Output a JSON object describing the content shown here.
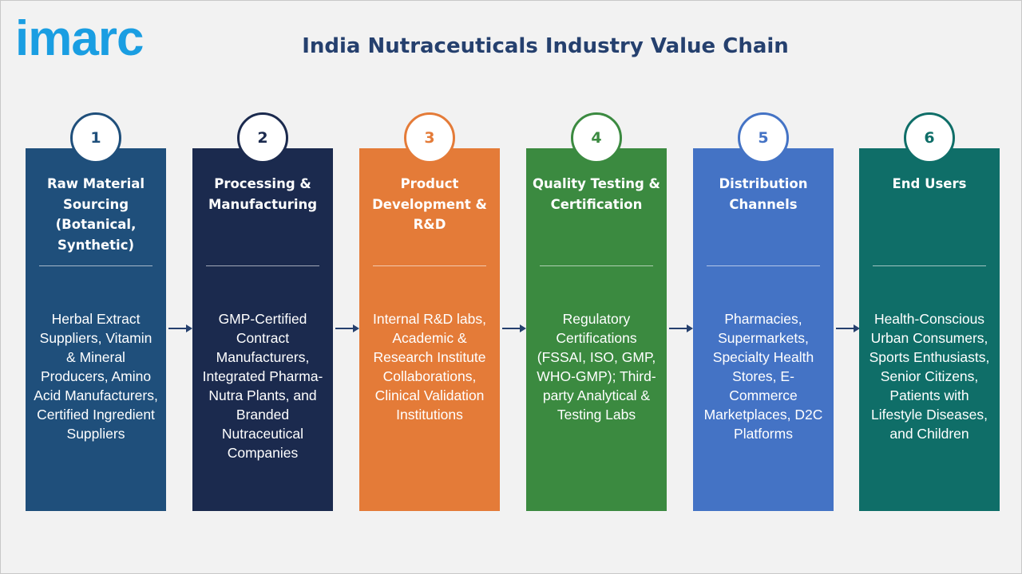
{
  "header": {
    "logo": "imarc",
    "title": "India Nutraceuticals Industry Value Chain"
  },
  "stages": [
    {
      "number": 1,
      "title": "Raw Material Sourcing (Botanical, Synthetic)",
      "description": "Herbal Extract Suppliers, Vitamin & Mineral Producers, Amino Acid Manufacturers, Certified Ingredient Suppliers"
    },
    {
      "number": 2,
      "title": "Processing & Manufacturing",
      "description": "GMP-Certified Contract Manufacturers, Integrated Pharma-Nutra Plants, and Branded Nutraceutical Companies"
    },
    {
      "number": 3,
      "title": "Product Development & R&D",
      "description": "Internal R&D labs, Academic & Research Institute Collaborations, Clinical Validation Institutions"
    },
    {
      "number": 4,
      "title": "Quality Testing & Certification",
      "description": "Regulatory Certifications (FSSAI, ISO, GMP, WHO-GMP); Third-party Analytical & Testing Labs"
    },
    {
      "number": 5,
      "title": "Distribution Channels",
      "description": "Pharmacies, Supermarkets, Specialty Health Stores, E-Commerce Marketplaces, D2C Platforms"
    },
    {
      "number": 6,
      "title": "End Users",
      "description": "Health-Conscious Urban Consumers, Sports Enthusiasts, Senior Citizens, Patients with Lifestyle Diseases, and Children"
    }
  ]
}
